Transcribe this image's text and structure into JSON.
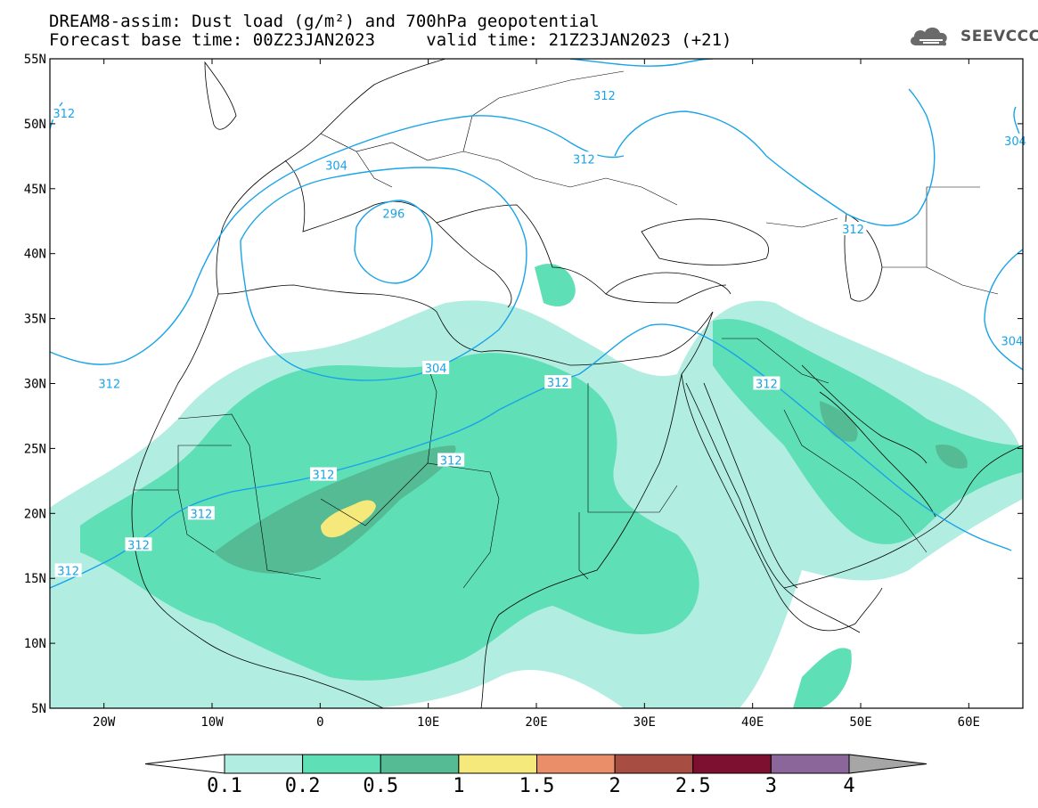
{
  "header": {
    "model": "DREAM8-assim:",
    "field": "Dust load (g/m²) and 700hPa geopotential",
    "base_time_label": "Forecast base time:",
    "base_time": "00Z23JAN2023",
    "valid_label": "valid time:",
    "valid_time": "21Z23JAN2023 (+21)"
  },
  "logo": {
    "text": "SEEVCCC",
    "icon": "cloud-icon"
  },
  "map": {
    "lon_range": [
      -25,
      65
    ],
    "lat_range": [
      5,
      55
    ],
    "lat_labels": [
      "55N",
      "50N",
      "45N",
      "40N",
      "35N",
      "30N",
      "25N",
      "20N",
      "15N",
      "10N",
      "5N"
    ],
    "lat_values": [
      55,
      50,
      45,
      40,
      35,
      30,
      25,
      20,
      15,
      10,
      5
    ],
    "lon_labels": [
      "20W",
      "10W",
      "0",
      "10E",
      "20E",
      "30E",
      "40E",
      "50E",
      "60E"
    ],
    "lon_values": [
      -20,
      -10,
      0,
      10,
      20,
      30,
      40,
      50,
      60
    ],
    "contour_labels": [
      {
        "text": "312",
        "lon": -19.5,
        "lat": 30.0
      },
      {
        "text": "312",
        "lon": -11.0,
        "lat": 20.0
      },
      {
        "text": "312",
        "lon": -16.8,
        "lat": 17.6
      },
      {
        "text": "312",
        "lon": -23.3,
        "lat": 15.6
      },
      {
        "text": "312",
        "lon": 0.3,
        "lat": 23.0
      },
      {
        "text": "312",
        "lon": 12.1,
        "lat": 24.1
      },
      {
        "text": "312",
        "lon": 22.0,
        "lat": 30.1
      },
      {
        "text": "312",
        "lon": 26.3,
        "lat": 52.2
      },
      {
        "text": "312",
        "lon": 24.4,
        "lat": 47.3
      },
      {
        "text": "312",
        "lon": 49.3,
        "lat": 41.9
      },
      {
        "text": "312",
        "lon": 41.3,
        "lat": 30.0
      },
      {
        "text": "312",
        "lon": -23.7,
        "lat": 50.8
      },
      {
        "text": "304",
        "lon": 10.7,
        "lat": 31.2
      },
      {
        "text": "304",
        "lon": 1.5,
        "lat": 46.8
      },
      {
        "text": "304",
        "lon": 64.0,
        "lat": 33.3
      },
      {
        "text": "304",
        "lon": 64.3,
        "lat": 48.7
      },
      {
        "text": "296",
        "lon": 6.8,
        "lat": 43.1
      }
    ]
  },
  "colorbar": {
    "labels": [
      "0.1",
      "0.2",
      "0.5",
      "1",
      "1.5",
      "2",
      "2.5",
      "3",
      "4"
    ],
    "colors": [
      "#b2ede1",
      "#5fdfb6",
      "#55bb95",
      "#f4e97a",
      "#ea8e69",
      "#a84d42",
      "#7d0f30",
      "#8a669b"
    ],
    "under_color": "#ffffff",
    "over_color": "#a6a6a6"
  },
  "colors": {
    "contour": "#1aa3e8",
    "coast": "#000000"
  }
}
